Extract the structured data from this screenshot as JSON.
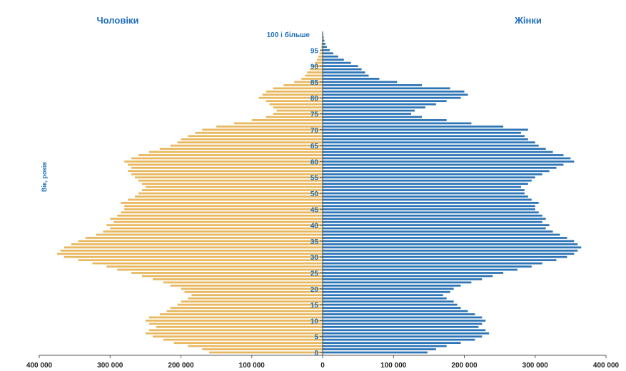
{
  "chart_data": {
    "type": "bar",
    "subtype": "population-pyramid",
    "left_title": "Чоловіки",
    "right_title": "Жінки",
    "top_age_label": "100 і більше",
    "ylabel": "Вік, років",
    "xlim": [
      -400000,
      400000
    ],
    "x_tick_labels": [
      "400 000",
      "300 000",
      "200 000",
      "100 000",
      "0",
      "100 000",
      "200 000",
      "300 000",
      "400 000"
    ],
    "x_tick_values": [
      -400000,
      -300000,
      -200000,
      -100000,
      0,
      100000,
      200000,
      300000,
      400000
    ],
    "y_tick_labels": [
      "0",
      "5",
      "10",
      "15",
      "20",
      "25",
      "30",
      "35",
      "40",
      "45",
      "50",
      "55",
      "60",
      "65",
      "70",
      "75",
      "80",
      "85",
      "90",
      "95"
    ],
    "y_tick_values": [
      0,
      5,
      10,
      15,
      20,
      25,
      30,
      35,
      40,
      45,
      50,
      55,
      60,
      65,
      70,
      75,
      80,
      85,
      90,
      95
    ],
    "ages": [
      0,
      1,
      2,
      3,
      4,
      5,
      6,
      7,
      8,
      9,
      10,
      11,
      12,
      13,
      14,
      15,
      16,
      17,
      18,
      19,
      20,
      21,
      22,
      23,
      24,
      25,
      26,
      27,
      28,
      29,
      30,
      31,
      32,
      33,
      34,
      35,
      36,
      37,
      38,
      39,
      40,
      41,
      42,
      43,
      44,
      45,
      46,
      47,
      48,
      49,
      50,
      51,
      52,
      53,
      54,
      55,
      56,
      57,
      58,
      59,
      60,
      61,
      62,
      63,
      64,
      65,
      66,
      67,
      68,
      69,
      70,
      71,
      72,
      73,
      74,
      75,
      76,
      77,
      78,
      79,
      80,
      81,
      82,
      83,
      84,
      85,
      86,
      87,
      88,
      89,
      90,
      91,
      92,
      93,
      94,
      95,
      96,
      97,
      98,
      99,
      100
    ],
    "series": [
      {
        "name": "Чоловіки",
        "color": "#E8B860",
        "values": [
          160000,
          170000,
          190000,
          210000,
          225000,
          240000,
          250000,
          245000,
          235000,
          245000,
          250000,
          245000,
          230000,
          220000,
          215000,
          205000,
          200000,
          190000,
          185000,
          195000,
          200000,
          215000,
          225000,
          240000,
          255000,
          270000,
          290000,
          305000,
          325000,
          345000,
          365000,
          375000,
          370000,
          365000,
          355000,
          345000,
          335000,
          320000,
          310000,
          300000,
          305000,
          295000,
          300000,
          290000,
          285000,
          280000,
          280000,
          285000,
          275000,
          265000,
          260000,
          255000,
          250000,
          255000,
          260000,
          265000,
          270000,
          275000,
          270000,
          275000,
          280000,
          270000,
          260000,
          245000,
          230000,
          215000,
          205000,
          200000,
          190000,
          180000,
          170000,
          150000,
          125000,
          100000,
          80000,
          70000,
          65000,
          70000,
          75000,
          80000,
          90000,
          85000,
          80000,
          70000,
          55000,
          40000,
          30000,
          25000,
          22000,
          18000,
          15000,
          11000,
          8000,
          6000,
          4500,
          3000,
          2000,
          1500,
          1000,
          700,
          400
        ]
      },
      {
        "name": "Жінки",
        "color": "#2E75B6",
        "values": [
          148000,
          160000,
          175000,
          195000,
          215000,
          225000,
          235000,
          230000,
          220000,
          225000,
          230000,
          225000,
          215000,
          205000,
          195000,
          190000,
          185000,
          175000,
          170000,
          180000,
          185000,
          195000,
          210000,
          225000,
          240000,
          255000,
          275000,
          295000,
          310000,
          330000,
          345000,
          355000,
          360000,
          365000,
          360000,
          355000,
          345000,
          335000,
          325000,
          315000,
          320000,
          310000,
          315000,
          310000,
          305000,
          300000,
          300000,
          305000,
          295000,
          290000,
          285000,
          285000,
          280000,
          290000,
          295000,
          300000,
          310000,
          320000,
          330000,
          340000,
          355000,
          350000,
          340000,
          325000,
          315000,
          305000,
          300000,
          290000,
          285000,
          280000,
          290000,
          255000,
          210000,
          175000,
          140000,
          125000,
          130000,
          145000,
          160000,
          175000,
          195000,
          205000,
          200000,
          180000,
          140000,
          105000,
          80000,
          65000,
          60000,
          55000,
          50000,
          40000,
          30000,
          22000,
          15000,
          10000,
          6000,
          4000,
          2500,
          1500,
          800
        ]
      }
    ]
  }
}
